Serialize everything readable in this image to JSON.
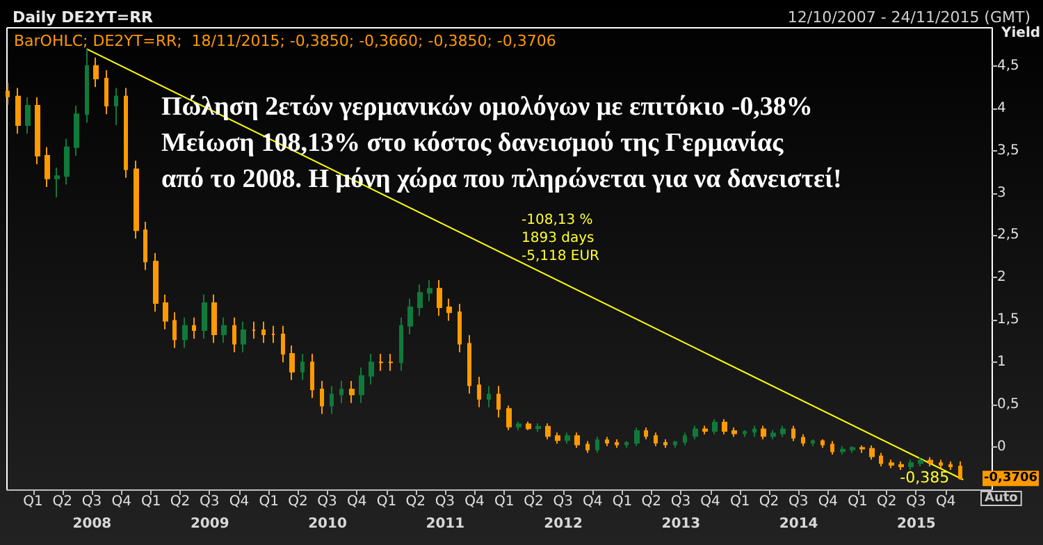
{
  "chart_data": {
    "type": "candlestick",
    "title": "Daily DE2YT=RR",
    "subtitle": "12/10/2007 - 24/11/2015 (GMT)",
    "ylabel": "Yield",
    "colors": [
      "#ff9a00",
      "#ff9a00",
      "#0f7a3a",
      "#ff9a00",
      "#ff9a00",
      "#0f7a3a",
      "#0f7a3a",
      "#0f7a3a",
      "#0f7a3a",
      "#ff9a00",
      "#ff9a00",
      "#0f7a3a",
      "#ff9a00",
      "#ff9a00",
      "#ff9a00",
      "#ff9a00",
      "#ff9a00",
      "#ff9a00",
      "#0f7a3a",
      "#ff9a00",
      "#0f7a3a",
      "#ff9a00",
      "#0f7a3a",
      "#ff9a00",
      "#0f7a3a",
      "#ff9a00",
      "#ff9a00",
      "#ff9a00",
      "#ff9a00",
      "#ff9a00",
      "#0f7a3a",
      "#ff9a00",
      "#ff9a00",
      "#0f7a3a",
      "#0f7a3a",
      "#ff9a00",
      "#0f7a3a",
      "#0f7a3a",
      "#ff9a00",
      "#ff9a00",
      "#0f7a3a",
      "#0f7a3a",
      "#0f7a3a",
      "#0f7a3a",
      "#ff9a00",
      "#ff9a00",
      "#ff9a00",
      "#ff9a00",
      "#ff9a00",
      "#0f7a3a",
      "#ff9a00",
      "#ff9a00",
      "#0f7a3a",
      "#ff9a00",
      "#0f7a3a",
      "#ff9a00",
      "#ff9a00",
      "#0f7a3a",
      "#ff9a00",
      "#ff9a00",
      "#0f7a3a",
      "#ff9a00",
      "#ff9a00",
      "#0f7a3a",
      "#0f7a3a",
      "#ff9a00",
      "#ff9a00",
      "#ff9a00",
      "#0f7a3a",
      "#0f7a3a",
      "#0f7a3a",
      "#ff9a00",
      "#0f7a3a",
      "#ff9a00",
      "#ff9a00",
      "#0f7a3a",
      "#0f7a3a",
      "#ff9a00",
      "#0f7a3a",
      "#0f7a3a",
      "#ff9a00",
      "#ff9a00",
      "#0f7a3a",
      "#ff9a00",
      "#ff9a00",
      "#0f7a3a",
      "#0f7a3a",
      "#ff9a00",
      "#ff9a00",
      "#ff9a00",
      "#ff9a00",
      "#ff9a00",
      "#0f7a3a",
      "#0f7a3a",
      "#ff9a00",
      "#ff9a00",
      "#ff9a00",
      "#ff9a00"
    ],
    "x": [
      "2007-10-15",
      "2007-11-15",
      "2007-12-15",
      "2008-01-15",
      "2008-02-15",
      "2008-03-15",
      "2008-04-15",
      "2008-05-15",
      "2008-06-15",
      "2008-07-15",
      "2008-08-15",
      "2008-09-15",
      "2008-10-15",
      "2008-11-15",
      "2008-12-15",
      "2009-01-15",
      "2009-02-15",
      "2009-03-15",
      "2009-04-15",
      "2009-05-15",
      "2009-06-15",
      "2009-07-15",
      "2009-08-15",
      "2009-09-15",
      "2009-10-15",
      "2009-11-15",
      "2009-12-15",
      "2010-01-15",
      "2010-02-15",
      "2010-03-15",
      "2010-04-15",
      "2010-05-15",
      "2010-06-15",
      "2010-07-15",
      "2010-08-15",
      "2010-09-15",
      "2010-10-15",
      "2010-11-15",
      "2010-12-15",
      "2011-01-15",
      "2011-02-15",
      "2011-03-15",
      "2011-04-15",
      "2011-05-15",
      "2011-06-15",
      "2011-07-15",
      "2011-08-15",
      "2011-09-15",
      "2011-10-15",
      "2011-11-15",
      "2011-12-15",
      "2012-01-15",
      "2012-02-15",
      "2012-03-15",
      "2012-04-15",
      "2012-05-15",
      "2012-06-15",
      "2012-07-15",
      "2012-08-15",
      "2012-09-15",
      "2012-10-15",
      "2012-11-15",
      "2012-12-15",
      "2013-01-15",
      "2013-02-15",
      "2013-03-15",
      "2013-04-15",
      "2013-05-15",
      "2013-06-15",
      "2013-07-15",
      "2013-08-15",
      "2013-09-15",
      "2013-10-15",
      "2013-11-15",
      "2013-12-15",
      "2014-01-15",
      "2014-02-15",
      "2014-03-15",
      "2014-04-15",
      "2014-05-15",
      "2014-06-15",
      "2014-07-15",
      "2014-08-15",
      "2014-09-15",
      "2014-10-15",
      "2014-11-15",
      "2014-12-15",
      "2015-01-15",
      "2015-02-15",
      "2015-03-15",
      "2015-04-15",
      "2015-05-15",
      "2015-06-15",
      "2015-07-15",
      "2015-08-15",
      "2015-09-15",
      "2015-10-15",
      "2015-11-15"
    ],
    "ohlc": [
      [
        4.2,
        4.3,
        4.04,
        4.14
      ],
      [
        4.14,
        4.24,
        3.7,
        3.8
      ],
      [
        3.8,
        4.13,
        3.7,
        4.03
      ],
      [
        4.03,
        4.13,
        3.34,
        3.44
      ],
      [
        3.44,
        3.54,
        3.07,
        3.17
      ],
      [
        3.17,
        3.3,
        2.95,
        3.2
      ],
      [
        3.2,
        3.64,
        3.1,
        3.54
      ],
      [
        3.54,
        4.03,
        3.44,
        3.93
      ],
      [
        3.93,
        4.7,
        3.83,
        4.5
      ],
      [
        4.5,
        4.6,
        4.25,
        4.35
      ],
      [
        4.35,
        4.45,
        3.93,
        4.03
      ],
      [
        4.03,
        4.24,
        3.8,
        4.14
      ],
      [
        4.14,
        4.24,
        3.18,
        3.28
      ],
      [
        3.28,
        3.38,
        2.46,
        2.56
      ],
      [
        2.56,
        2.66,
        2.09,
        2.19
      ],
      [
        2.19,
        2.29,
        1.6,
        1.7
      ],
      [
        1.7,
        1.8,
        1.39,
        1.49
      ],
      [
        1.49,
        1.59,
        1.17,
        1.27
      ],
      [
        1.27,
        1.53,
        1.17,
        1.43
      ],
      [
        1.43,
        1.53,
        1.28,
        1.38
      ],
      [
        1.38,
        1.8,
        1.28,
        1.7
      ],
      [
        1.7,
        1.8,
        1.23,
        1.33
      ],
      [
        1.33,
        1.53,
        1.23,
        1.43
      ],
      [
        1.43,
        1.53,
        1.12,
        1.22
      ],
      [
        1.22,
        1.48,
        1.12,
        1.38
      ],
      [
        1.38,
        1.48,
        1.28,
        1.38
      ],
      [
        1.38,
        1.48,
        1.23,
        1.33
      ],
      [
        1.33,
        1.43,
        1.23,
        1.33
      ],
      [
        1.33,
        1.43,
        1.0,
        1.1
      ],
      [
        1.1,
        1.2,
        0.79,
        0.89
      ],
      [
        0.89,
        1.1,
        0.79,
        1.0
      ],
      [
        1.0,
        1.1,
        0.58,
        0.68
      ],
      [
        0.68,
        0.78,
        0.39,
        0.49
      ],
      [
        0.49,
        0.72,
        0.39,
        0.62
      ],
      [
        0.62,
        0.78,
        0.52,
        0.68
      ],
      [
        0.68,
        0.78,
        0.52,
        0.62
      ],
      [
        0.62,
        0.94,
        0.52,
        0.84
      ],
      [
        0.84,
        1.1,
        0.74,
        1.0
      ],
      [
        1.0,
        1.1,
        0.9,
        1.0
      ],
      [
        1.0,
        1.1,
        0.9,
        1.0
      ],
      [
        1.0,
        1.53,
        0.9,
        1.43
      ],
      [
        1.43,
        1.75,
        1.33,
        1.65
      ],
      [
        1.65,
        1.92,
        1.55,
        1.82
      ],
      [
        1.82,
        1.97,
        1.72,
        1.87
      ],
      [
        1.87,
        1.97,
        1.55,
        1.65
      ],
      [
        1.65,
        1.75,
        1.49,
        1.59
      ],
      [
        1.59,
        1.69,
        1.12,
        1.22
      ],
      [
        1.22,
        1.32,
        0.63,
        0.73
      ],
      [
        0.73,
        0.83,
        0.47,
        0.57
      ],
      [
        0.57,
        0.72,
        0.47,
        0.62
      ],
      [
        0.62,
        0.72,
        0.35,
        0.45
      ],
      [
        0.45,
        0.49,
        0.2,
        0.24
      ],
      [
        0.24,
        0.3,
        0.2,
        0.27
      ],
      [
        0.27,
        0.3,
        0.2,
        0.22
      ],
      [
        0.22,
        0.28,
        0.18,
        0.24
      ],
      [
        0.24,
        0.28,
        0.09,
        0.13
      ],
      [
        0.13,
        0.17,
        0.04,
        0.08
      ],
      [
        0.08,
        0.17,
        0.04,
        0.13
      ],
      [
        0.13,
        0.17,
        -0.01,
        0.03
      ],
      [
        0.03,
        0.07,
        -0.07,
        -0.03
      ],
      [
        -0.03,
        0.12,
        -0.07,
        0.08
      ],
      [
        0.08,
        0.12,
        0.01,
        0.05
      ],
      [
        0.05,
        0.09,
        -0.01,
        0.03
      ],
      [
        0.03,
        0.07,
        -0.01,
        0.05
      ],
      [
        0.05,
        0.23,
        0.01,
        0.19
      ],
      [
        0.19,
        0.23,
        0.09,
        0.13
      ],
      [
        0.13,
        0.17,
        0.01,
        0.05
      ],
      [
        0.05,
        0.09,
        -0.01,
        0.03
      ],
      [
        0.03,
        0.07,
        -0.01,
        0.06
      ],
      [
        0.06,
        0.17,
        0.02,
        0.13
      ],
      [
        0.13,
        0.25,
        0.09,
        0.21
      ],
      [
        0.21,
        0.25,
        0.15,
        0.19
      ],
      [
        0.19,
        0.33,
        0.15,
        0.29
      ],
      [
        0.29,
        0.33,
        0.15,
        0.19
      ],
      [
        0.19,
        0.23,
        0.12,
        0.16
      ],
      [
        0.16,
        0.2,
        0.12,
        0.18
      ],
      [
        0.18,
        0.25,
        0.12,
        0.21
      ],
      [
        0.21,
        0.25,
        0.09,
        0.13
      ],
      [
        0.13,
        0.2,
        0.09,
        0.16
      ],
      [
        0.16,
        0.25,
        0.12,
        0.21
      ],
      [
        0.21,
        0.25,
        0.07,
        0.11
      ],
      [
        0.11,
        0.15,
        0.01,
        0.05
      ],
      [
        0.05,
        0.09,
        0.01,
        0.07
      ],
      [
        0.07,
        0.09,
        -0.01,
        0.03
      ],
      [
        0.03,
        0.07,
        -0.09,
        -0.05
      ],
      [
        -0.05,
        0.01,
        -0.09,
        -0.03
      ],
      [
        -0.03,
        0.01,
        -0.07,
        -0.01
      ],
      [
        -0.01,
        0.02,
        -0.07,
        -0.02
      ],
      [
        -0.02,
        0.02,
        -0.15,
        -0.11
      ],
      [
        -0.11,
        -0.07,
        -0.23,
        -0.19
      ],
      [
        -0.19,
        -0.15,
        -0.25,
        -0.21
      ],
      [
        -0.21,
        -0.17,
        -0.27,
        -0.23
      ],
      [
        -0.23,
        -0.15,
        -0.27,
        -0.19
      ],
      [
        -0.19,
        -0.12,
        -0.23,
        -0.16
      ],
      [
        -0.16,
        -0.12,
        -0.23,
        -0.19
      ],
      [
        -0.19,
        -0.15,
        -0.25,
        -0.21
      ],
      [
        -0.21,
        -0.17,
        -0.27,
        -0.23
      ],
      [
        -0.23,
        -0.17,
        -0.385,
        -0.37
      ]
    ],
    "series": [
      {
        "type": "line",
        "color": "#ffff00",
        "x": [
          "2008-06-15",
          "2015-11-24"
        ],
        "values": [
          4.7,
          -0.385
        ]
      }
    ],
    "xlim": [
      "2007-10-12",
      "2016-02-20"
    ],
    "xticks": [
      {
        "value": "2008-01-01",
        "label": "Q1"
      },
      {
        "value": "2008-04-01",
        "label": "Q2"
      },
      {
        "value": "2008-07-01",
        "label": "Q3"
      },
      {
        "value": "2008-10-01",
        "label": "Q4"
      },
      {
        "value": "2009-01-01",
        "label": "Q1"
      },
      {
        "value": "2009-04-01",
        "label": "Q2"
      },
      {
        "value": "2009-07-01",
        "label": "Q3"
      },
      {
        "value": "2009-10-01",
        "label": "Q4"
      },
      {
        "value": "2010-01-01",
        "label": "Q1"
      },
      {
        "value": "2010-04-01",
        "label": "Q2"
      },
      {
        "value": "2010-07-01",
        "label": "Q3"
      },
      {
        "value": "2010-10-01",
        "label": "Q4"
      },
      {
        "value": "2011-01-01",
        "label": "Q1"
      },
      {
        "value": "2011-04-01",
        "label": "Q2"
      },
      {
        "value": "2011-07-01",
        "label": "Q3"
      },
      {
        "value": "2011-10-01",
        "label": "Q4"
      },
      {
        "value": "2012-01-01",
        "label": "Q1"
      },
      {
        "value": "2012-04-01",
        "label": "Q2"
      },
      {
        "value": "2012-07-01",
        "label": "Q3"
      },
      {
        "value": "2012-10-01",
        "label": "Q4"
      },
      {
        "value": "2013-01-01",
        "label": "Q1"
      },
      {
        "value": "2013-04-01",
        "label": "Q2"
      },
      {
        "value": "2013-07-01",
        "label": "Q3"
      },
      {
        "value": "2013-10-01",
        "label": "Q4"
      },
      {
        "value": "2014-01-01",
        "label": "Q1"
      },
      {
        "value": "2014-04-01",
        "label": "Q2"
      },
      {
        "value": "2014-07-01",
        "label": "Q3"
      },
      {
        "value": "2014-10-01",
        "label": "Q4"
      },
      {
        "value": "2015-01-01",
        "label": "Q1"
      },
      {
        "value": "2015-04-01",
        "label": "Q2"
      },
      {
        "value": "2015-07-01",
        "label": "Q3"
      },
      {
        "value": "2015-10-01",
        "label": "Q4"
      }
    ],
    "x2lim": [
      "2007-10-12",
      "2016-02-20"
    ],
    "x2ticks": [
      {
        "value": "2008-07-02",
        "label": "2008"
      },
      {
        "value": "2009-07-02",
        "label": "2009"
      },
      {
        "value": "2010-07-02",
        "label": "2010"
      },
      {
        "value": "2011-07-02",
        "label": "2011"
      },
      {
        "value": "2012-07-02",
        "label": "2012"
      },
      {
        "value": "2013-07-02",
        "label": "2013"
      },
      {
        "value": "2014-07-02",
        "label": "2014"
      },
      {
        "value": "2015-07-02",
        "label": "2015"
      }
    ],
    "ylim": [
      -0.5,
      4.95
    ],
    "yticks": [
      0,
      {
        "value": 0.5,
        "label": "0,5"
      },
      1,
      {
        "value": 1.5,
        "label": "1,5"
      },
      2,
      {
        "value": 2.5,
        "label": "2,5"
      },
      3,
      {
        "value": 3.5,
        "label": "3,5"
      },
      4,
      {
        "value": 4.5,
        "label": "4,5"
      }
    ],
    "annotations": [
      "BarOHLC; DE2YT=RR;  18/11/2015; -0,3850; -0,3660; -0,3850; -0,3706",
      "Πώληση 2ετών γερμανικών ομολόγων με επιτόκιο -0,38%\nΜείωση 108,13% στο κόστος δανεισμού της Γερμανίας\nαπό το 2008. Η μόνη χώρα που πληρώνεται για να δανειστεί!",
      "-108,13 %\n1893 days\n-5,118 EUR",
      {
        "text": "-0,385",
        "x": "2015-11-24",
        "y": -0.385
      },
      {
        "text": "-0,3706",
        "x": "2015-11-24",
        "y": -0.3706
      },
      "Auto"
    ],
    "grid": false,
    "line_style": "solid",
    "marker": "none"
  }
}
